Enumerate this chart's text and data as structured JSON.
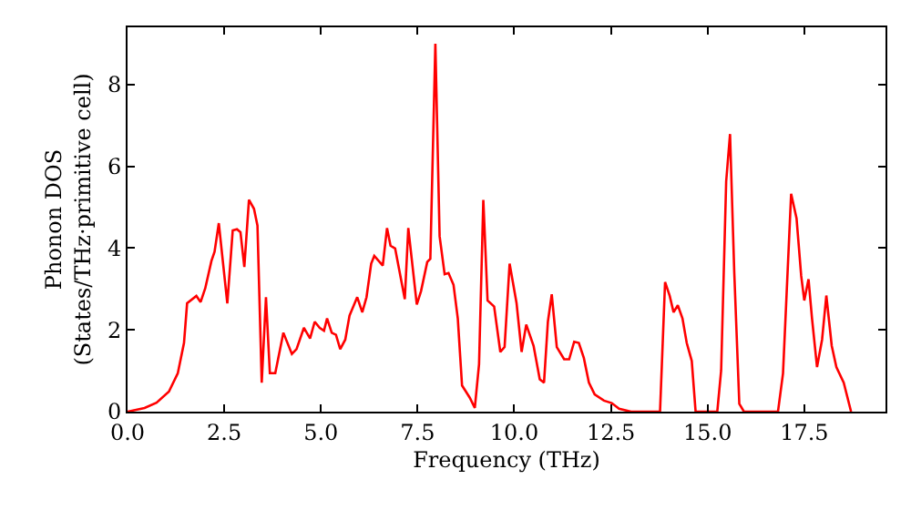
{
  "chart_data": {
    "type": "line",
    "xlabel": "Frequency (THz)",
    "ylabel": "Phonon DOS\n(States/THz·primitive cell)",
    "xlim": [
      0,
      19.6
    ],
    "ylim": [
      0,
      9.4
    ],
    "xticks": [
      {
        "value": 0,
        "label": "0.0"
      },
      {
        "value": 2.5,
        "label": "2.5"
      },
      {
        "value": 5,
        "label": "5.0"
      },
      {
        "value": 7.5,
        "label": "7.5"
      },
      {
        "value": 10,
        "label": "10.0"
      },
      {
        "value": 12.5,
        "label": "12.5"
      },
      {
        "value": 15,
        "label": "15.0"
      },
      {
        "value": 17.5,
        "label": "17.5"
      }
    ],
    "yticks": [
      0,
      2,
      4,
      6,
      8
    ],
    "marker": "none",
    "line_style": "solid",
    "series": [
      {
        "color": "#ff0000",
        "x": [
          0,
          0.44,
          0.75,
          1.07,
          1.3,
          1.46,
          1.54,
          1.78,
          1.89,
          2.01,
          2.17,
          2.25,
          2.36,
          2.48,
          2.58,
          2.72,
          2.83,
          2.92,
          3.02,
          3.14,
          3.27,
          3.36,
          3.47,
          3.58,
          3.68,
          3.82,
          4.03,
          4.25,
          4.37,
          4.56,
          4.72,
          4.84,
          4.97,
          5.08,
          5.16,
          5.28,
          5.39,
          5.5,
          5.63,
          5.74,
          5.94,
          6.07,
          6.18,
          6.3,
          6.38,
          6.6,
          6.71,
          6.8,
          6.92,
          7.17,
          7.26,
          7.48,
          7.59,
          7.75,
          7.83,
          7.96,
          8.07,
          8.2,
          8.3,
          8.43,
          8.54,
          8.65,
          8.85,
          8.98,
          9.09,
          9.2,
          9.31,
          9.48,
          9.64,
          9.75,
          9.88,
          10.06,
          10.19,
          10.31,
          10.5,
          10.66,
          10.77,
          10.87,
          10.97,
          11.1,
          11.29,
          11.42,
          11.55,
          11.67,
          11.8,
          11.93,
          12.08,
          12.32,
          12.52,
          12.71,
          13.02,
          13.77,
          13.9,
          14.02,
          14.12,
          14.23,
          14.35,
          14.46,
          14.59,
          14.69,
          15.25,
          15.35,
          15.48,
          15.58,
          15.69,
          15.82,
          15.94,
          16.82,
          16.95,
          17.16,
          17.3,
          17.42,
          17.5,
          17.61,
          17.7,
          17.83,
          17.96,
          18.07,
          18.21,
          18.33,
          18.52,
          18.71
        ],
        "values": [
          0,
          0.09,
          0.22,
          0.49,
          0.94,
          1.68,
          2.65,
          2.83,
          2.68,
          3.02,
          3.69,
          3.91,
          4.61,
          3.54,
          2.65,
          4.43,
          4.46,
          4.39,
          3.54,
          5.18,
          4.96,
          4.55,
          0.71,
          2.8,
          0.94,
          0.94,
          1.93,
          1.41,
          1.53,
          2.05,
          1.79,
          2.2,
          2.05,
          1.98,
          2.28,
          1.93,
          1.88,
          1.53,
          1.76,
          2.35,
          2.8,
          2.43,
          2.8,
          3.62,
          3.81,
          3.57,
          4.49,
          4.06,
          3.99,
          2.75,
          4.49,
          2.62,
          2.95,
          3.66,
          3.74,
          9.0,
          4.29,
          3.36,
          3.39,
          3.1,
          2.28,
          0.64,
          0.34,
          0.09,
          1.16,
          5.18,
          2.72,
          2.57,
          1.46,
          1.58,
          3.62,
          2.65,
          1.46,
          2.13,
          1.61,
          0.79,
          0.71,
          2.2,
          2.87,
          1.58,
          1.28,
          1.28,
          1.71,
          1.68,
          1.31,
          0.71,
          0.42,
          0.27,
          0.21,
          0.07,
          0,
          0,
          3.17,
          2.83,
          2.43,
          2.6,
          2.28,
          1.68,
          1.24,
          0,
          0,
          1.01,
          5.63,
          6.79,
          3.39,
          0.19,
          0,
          0,
          0.94,
          5.33,
          4.73,
          3.32,
          2.72,
          3.24,
          2.28,
          1.09,
          1.76,
          2.84,
          1.61,
          1.09,
          0.71,
          0
        ]
      }
    ]
  }
}
